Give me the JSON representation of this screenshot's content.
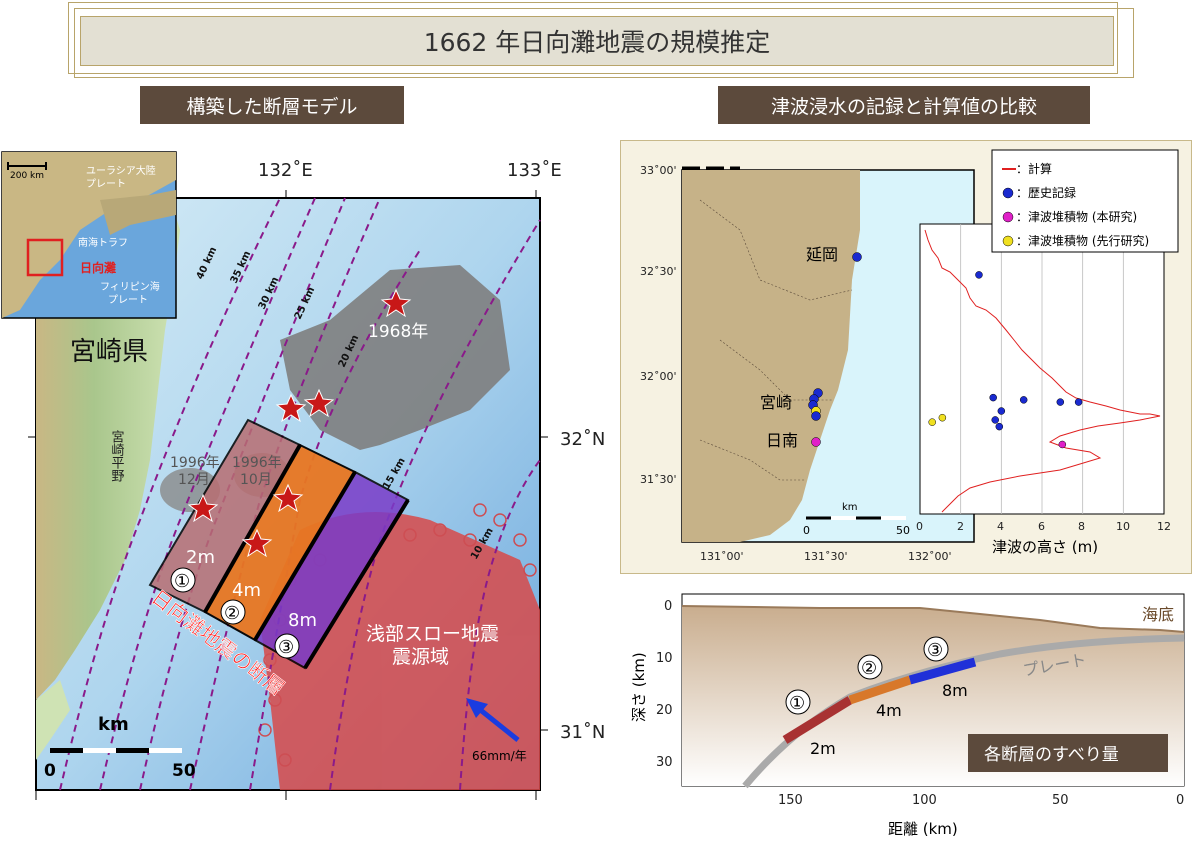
{
  "title": "1662 年日向灘地震の規模推定",
  "left_tab": "構築した断層モデル",
  "right_tab": "津波浸水の記録と計算値の比較",
  "left_map": {
    "lon_top": [
      "132˚E",
      "133˚E"
    ],
    "lat_right": [
      "32˚N",
      "31˚N"
    ],
    "prefecture": "宮崎県",
    "plain": "宮崎平野",
    "contours": [
      "40 km",
      "35 km",
      "30 km",
      "25 km",
      "20 km",
      "15 km",
      "10 km"
    ],
    "eq_1968": "1968年",
    "eq_1996_dec": [
      "1996年",
      "12月"
    ],
    "eq_1996_oct": [
      "1996年",
      "10月"
    ],
    "faults": [
      {
        "num": "①",
        "slip": "2m",
        "color": "#b86e72"
      },
      {
        "num": "②",
        "slip": "4m",
        "color": "#e87722"
      },
      {
        "num": "③",
        "slip": "8m",
        "color": "#7a3cc8"
      }
    ],
    "fault_label": "日向灘地震の断層",
    "slow_eq": [
      "浅部スロー地震",
      "震源域"
    ],
    "plate_rate": "66mm/年",
    "scale_unit": "km",
    "scale_ticks": [
      "0",
      "50"
    ],
    "inset": {
      "scale": "200 km",
      "eurasia": [
        "ユーラシア大陸",
        "プレート"
      ],
      "trough": "南海トラフ",
      "hyuganada": "日向灘",
      "philippine": [
        "フィリピン海",
        "プレート"
      ]
    }
  },
  "tsunami_panel": {
    "lat_labels": [
      "33˚00'",
      "32˚30'",
      "32˚00'",
      "31˚30'"
    ],
    "lon_labels": [
      "131˚00'",
      "131˚30'",
      "132˚00'"
    ],
    "cities": [
      "延岡",
      "宮崎",
      "日南"
    ],
    "scale_unit": "km",
    "scale_ticks": [
      "0",
      "50"
    ],
    "legend": [
      {
        "label": "：計算",
        "color": "#e02020",
        "kind": "line"
      },
      {
        "label": "：歴史記録",
        "color": "#1a2ad0",
        "kind": "dot"
      },
      {
        "label": "：津波堆積物 (本研究)",
        "color": "#e020c8",
        "kind": "dot"
      },
      {
        "label": "：津波堆積物 (先行研究)",
        "color": "#f0e020",
        "kind": "dot"
      }
    ],
    "xlabel": "津波の高さ (m)",
    "x_ticks": [
      "0",
      "2",
      "4",
      "6",
      "8",
      "10",
      "12"
    ]
  },
  "chart_data": {
    "type": "scatter",
    "xlabel": "津波の高さ (m)",
    "xlim": [
      0,
      12
    ],
    "series": [
      {
        "name": "歴史記録",
        "points": [
          [
            2.9,
            32.53
          ],
          [
            3.6,
            31.98
          ],
          [
            4.0,
            31.92
          ],
          [
            5.1,
            31.97
          ],
          [
            6.9,
            31.96
          ],
          [
            7.8,
            31.96
          ],
          [
            3.7,
            31.88
          ],
          [
            3.9,
            31.85
          ]
        ]
      },
      {
        "name": "津波堆積物 (本研究)",
        "points": [
          [
            7.0,
            31.77
          ]
        ]
      },
      {
        "name": "津波堆積物 (先行研究)",
        "points": [
          [
            0.6,
            31.87
          ],
          [
            1.1,
            31.89
          ]
        ]
      }
    ]
  },
  "cross_section": {
    "ylabel": "深さ (km)",
    "xlabel": "距離 (km)",
    "y_ticks": [
      "0",
      "10",
      "20",
      "30"
    ],
    "x_ticks": [
      "150",
      "100",
      "50",
      "0"
    ],
    "seafloor": "海底",
    "plate": "プレート",
    "faults": [
      {
        "num": "①",
        "slip": "2m",
        "color": "#a83232"
      },
      {
        "num": "②",
        "slip": "4m",
        "color": "#d8782a"
      },
      {
        "num": "③",
        "slip": "8m",
        "color": "#2030d8"
      }
    ],
    "badge": "各断層のすべり量"
  }
}
